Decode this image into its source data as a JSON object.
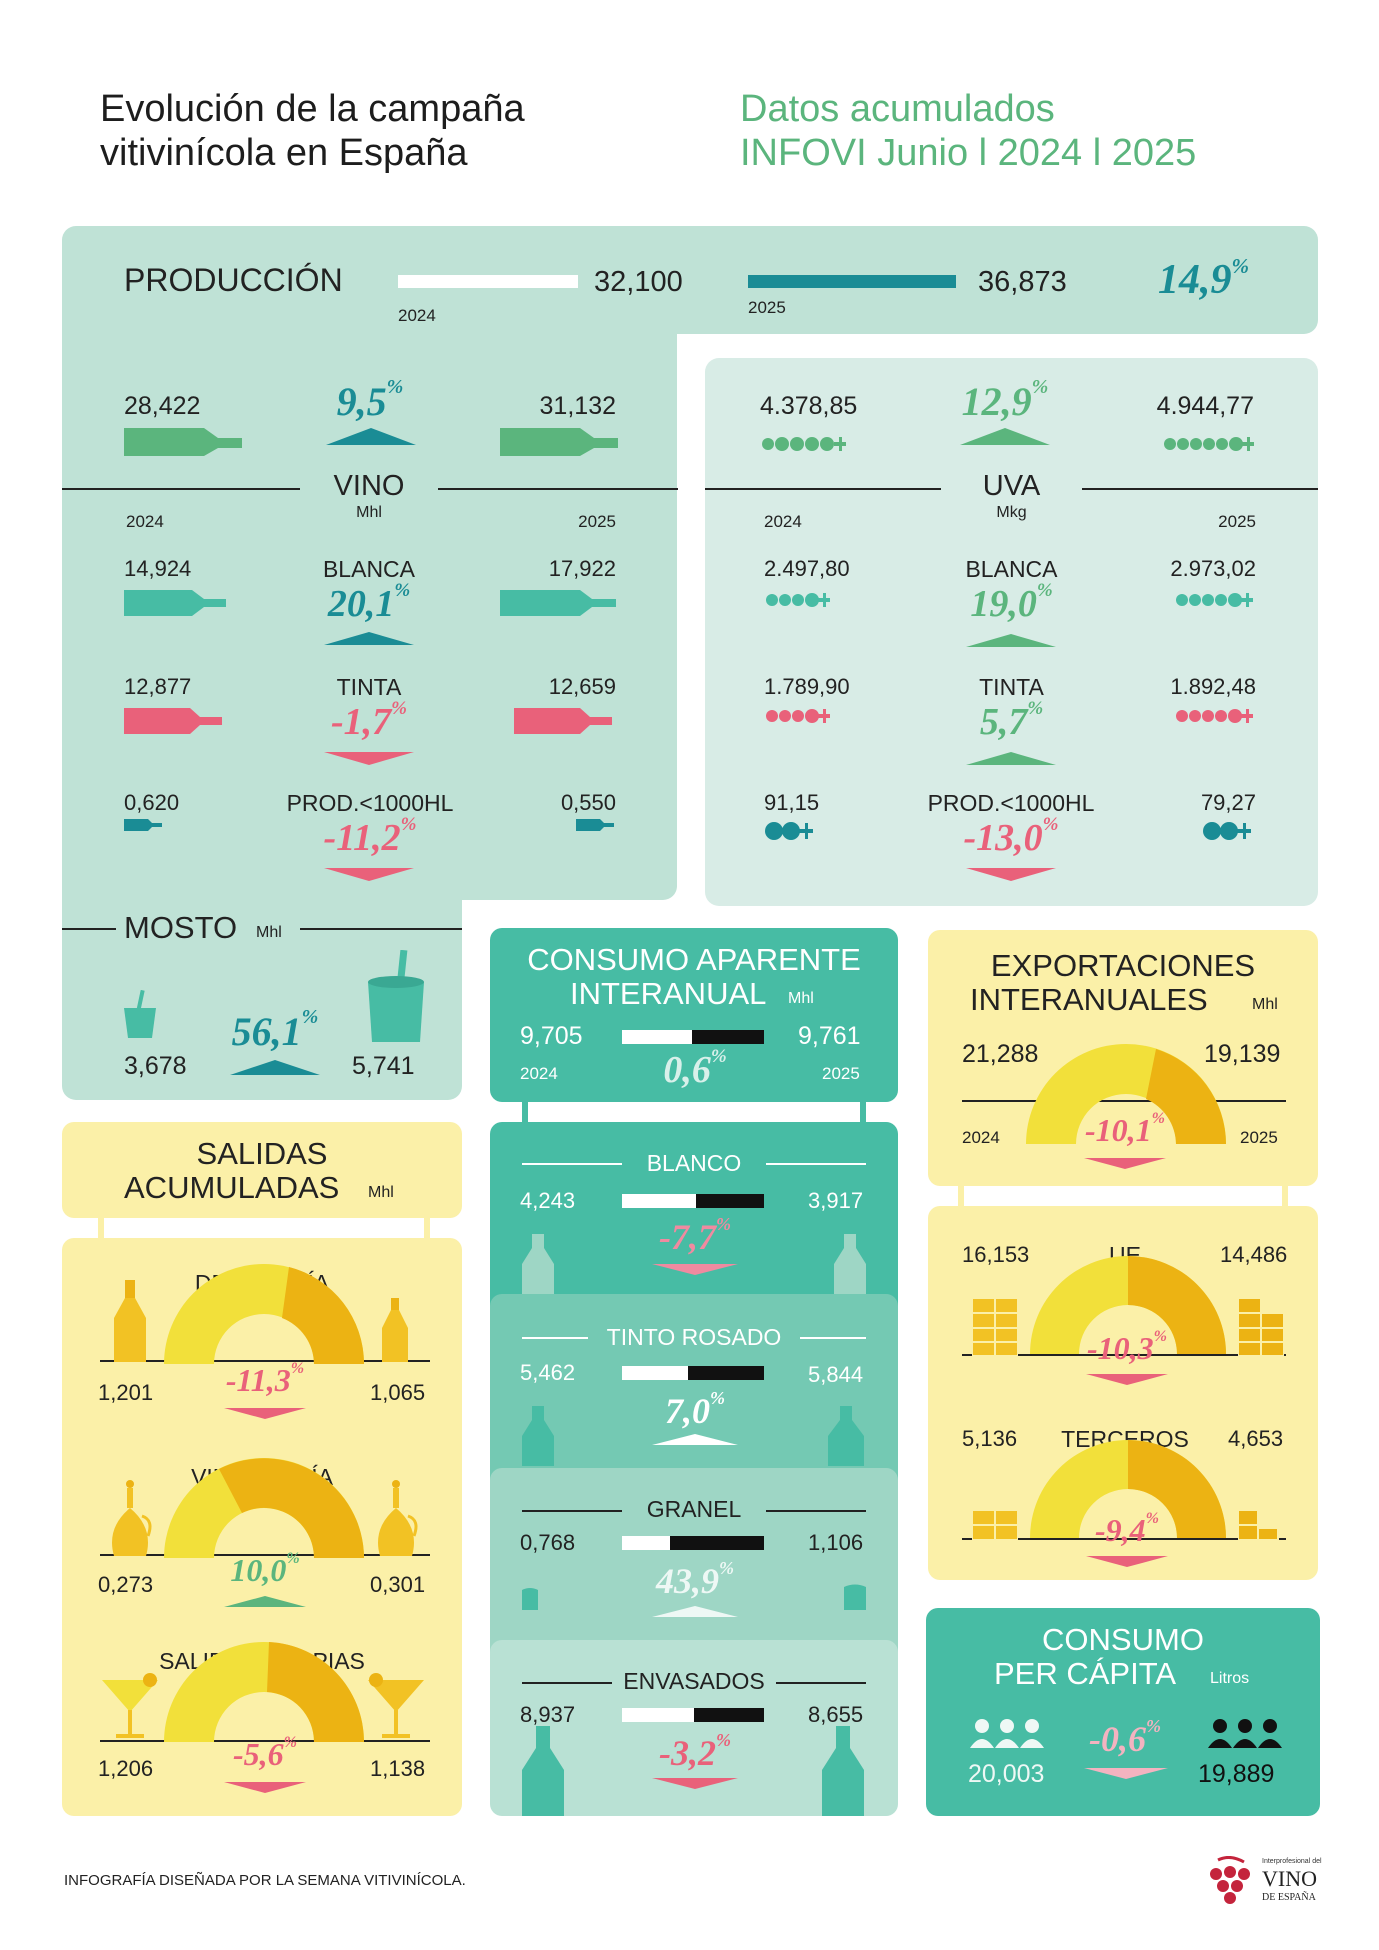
{
  "header": {
    "title_line1": "Evolución de la campaña",
    "title_line2": "vitivinícola en España",
    "subtitle_line1": "Datos acumulados",
    "subtitle_line2": "INFOVI Junio l 2024 l 2025"
  },
  "colors": {
    "teal_bg": "#bfe2d6",
    "light_teal_bg": "#d8ece6",
    "green": "#5bb57d",
    "teal_dark": "#1a8c95",
    "pink": "#e9617a",
    "yellow_bg": "#fbf0a8",
    "yellow": "#f2e03a",
    "orange": "#ecb313",
    "teal_block": "#52b99f"
  },
  "produccion": {
    "label": "PRODUCCIÓN",
    "year1": "2024",
    "value1": "32,100",
    "year2": "2025",
    "value2": "36,873",
    "pct": "14,9",
    "pct_sign": "%"
  },
  "vino": {
    "label": "VINO",
    "unit": "Mhl",
    "year1": "2024",
    "year2": "2025",
    "total": {
      "v1": "28,422",
      "pct": "9,5",
      "v2": "31,132"
    },
    "blanca": {
      "label": "BLANCA",
      "v1": "14,924",
      "pct": "20,1",
      "v2": "17,922"
    },
    "tinta": {
      "label": "TINTA",
      "v1": "12,877",
      "pct": "-1,7",
      "v2": "12,659"
    },
    "prod": {
      "label": "PROD.<1000HL",
      "v1": "0,620",
      "pct": "-11,2",
      "v2": "0,550"
    }
  },
  "uva": {
    "label": "UVA",
    "unit": "Mkg",
    "year1": "2024",
    "year2": "2025",
    "total": {
      "v1": "4.378,85",
      "pct": "12,9",
      "v2": "4.944,77"
    },
    "blanca": {
      "label": "BLANCA",
      "v1": "2.497,80",
      "pct": "19,0",
      "v2": "2.973,02"
    },
    "tinta": {
      "label": "TINTA",
      "v1": "1.789,90",
      "pct": "5,7",
      "v2": "1.892,48"
    },
    "prod": {
      "label": "PROD.<1000HL",
      "v1": "91,15",
      "pct": "-13,0",
      "v2": "79,27"
    }
  },
  "mosto": {
    "label": "MOSTO",
    "unit": "Mhl",
    "v1": "3,678",
    "pct": "56,1",
    "v2": "5,741"
  },
  "salidas": {
    "title1": "SALIDAS",
    "title2": "ACUMULADAS",
    "unit": "Mhl",
    "destileria": {
      "label": "DESTILERÍA",
      "v1": "1,201",
      "pct": "-11,3",
      "v2": "1,065"
    },
    "vinagreria": {
      "label": "VINAGRERÍA",
      "v1": "0,273",
      "pct": "10,0",
      "v2": "0,301"
    },
    "propias": {
      "label": "SALIDAS PROPIAS",
      "v1": "1,206",
      "pct": "-5,6",
      "v2": "1,138"
    }
  },
  "consumo_aparente": {
    "title1": "CONSUMO APARENTE",
    "title2": "INTERANUAL",
    "unit": "Mhl",
    "v1": "9,705",
    "v2": "9,761",
    "year1": "2024",
    "year2": "2025",
    "pct": "0,6",
    "blanco": {
      "label": "BLANCO",
      "v1": "4,243",
      "v2": "3,917",
      "pct": "-7,7"
    },
    "tinto": {
      "label": "TINTO ROSADO",
      "v1": "5,462",
      "v2": "5,844",
      "pct": "7,0"
    },
    "granel": {
      "label": "GRANEL",
      "v1": "0,768",
      "v2": "1,106",
      "pct": "43,9"
    },
    "envasados": {
      "label": "ENVASADOS",
      "v1": "8,937",
      "v2": "8,655",
      "pct": "-3,2"
    }
  },
  "exportaciones": {
    "title1": "EXPORTACIONES",
    "title2": "INTERANUALES",
    "unit": "Mhl",
    "v1": "21,288",
    "v2": "19,139",
    "year1": "2024",
    "year2": "2025",
    "pct": "-10,1",
    "ue": {
      "label": "UE",
      "v1": "16,153",
      "v2": "14,486",
      "pct": "-10,3"
    },
    "terceros": {
      "label": "TERCEROS",
      "v1": "5,136",
      "v2": "4,653",
      "pct": "-9,4"
    }
  },
  "per_capita": {
    "title1": "CONSUMO",
    "title2": "PER CÁPITA",
    "unit": "Litros",
    "v1": "20,003",
    "pct": "-0,6",
    "v2": "19,889"
  },
  "footer": {
    "credit": "INFOGRAFÍA DISEÑADA POR LA SEMANA VITIVINÍCOLA.",
    "logo_small": "Interprofesional del",
    "logo_big": "VINO",
    "logo_sub": "DE ESPAÑA"
  }
}
